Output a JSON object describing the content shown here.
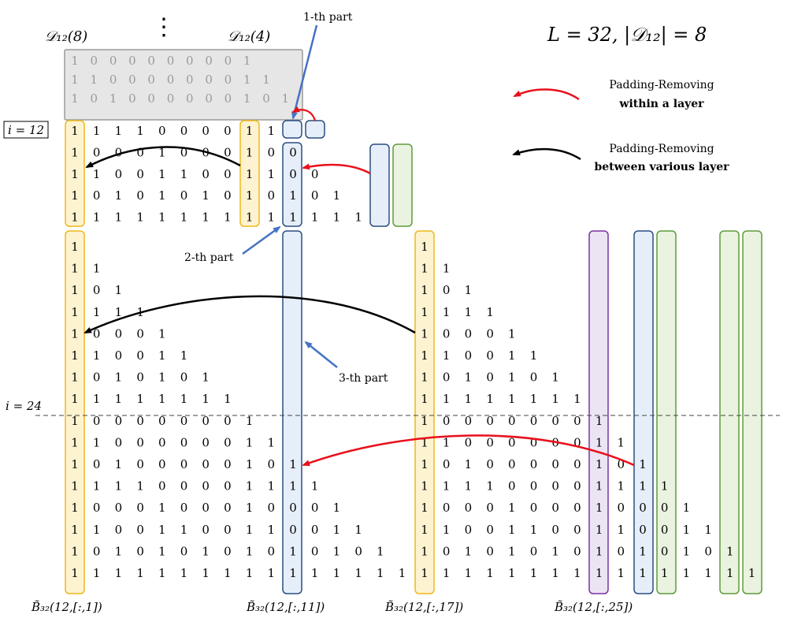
{
  "header": {
    "dots": "⋮",
    "d_left": "𝒟₁₂(8)",
    "d_right": "𝒟₁₂(4)",
    "formula": "L = 32, |𝒟₁₂| = 8"
  },
  "legend": {
    "within": {
      "line1": "Padding-Removing",
      "line2": "within a layer",
      "color": "#e8101a"
    },
    "between": {
      "line1": "Padding-Removing",
      "line2": "between various layer",
      "color": "#000000"
    }
  },
  "labels": {
    "i12": "i = 12",
    "i24": "i = 24",
    "part1": "1-th part",
    "part2": "2-th part",
    "part3": "3-th part"
  },
  "bottom_labels": [
    "B̃₃₂(12,[:,1])",
    "B̃₃₂(12,[:,11])",
    "B̃₃₂(12,[:,17])",
    "B̃₃₂(12,[:,25])"
  ],
  "colors": {
    "yellow_fill": "#fdf3d0",
    "yellow_stroke": "#f0b81a",
    "blue_fill": "#e6eef9",
    "blue_stroke": "#2b4f80",
    "green_fill": "#eaf3df",
    "green_stroke": "#5f9b3c",
    "purple_fill": "#ece4f3",
    "purple_stroke": "#7a33a3",
    "gray_fill": "#e6e6e6",
    "gray_stroke": "#9a9a9a",
    "arrow_blue": "#4472c4"
  },
  "matrices": {
    "gray": [
      "1000000001",
      "11000000011",
      "101000000101"
    ],
    "upper": [
      "1111000011",
      "10001000100",
      "110011001100",
      "1010101010101",
      "11111111111111"
    ],
    "left": [
      "1",
      "11",
      "101",
      "1111",
      "10001",
      "110011",
      "1010101",
      "11111111",
      "100000001",
      "1100000011",
      "10100000101",
      "111100001111",
      "1000100010001",
      "11001100110011",
      "101010101010101",
      "1111111111111111"
    ],
    "right": [
      "1",
      "11",
      "101",
      "1111",
      "10001",
      "110011",
      "1010101",
      "11111111",
      "100000001",
      "1100000011",
      "10100000101",
      "111100001111",
      "1000100010001",
      "11001100110011",
      "101010101010101",
      "1111111111111111"
    ]
  }
}
